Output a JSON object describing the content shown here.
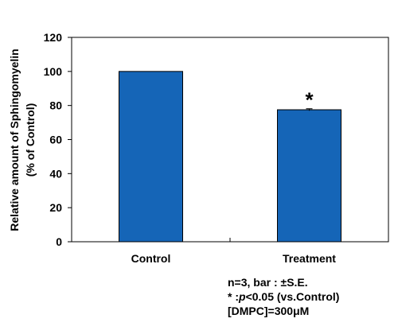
{
  "chart_data": {
    "type": "bar",
    "categories": [
      "Control",
      "Treatment"
    ],
    "values": [
      100,
      77.5
    ],
    "error": [
      0,
      0.6
    ],
    "significance": [
      "",
      "*"
    ],
    "ylabel_lines": [
      "Relative amount of Sphingomyelin",
      "(%  of Control)"
    ],
    "xlabel": "",
    "ylim": [
      0,
      120
    ],
    "yticks": [
      0,
      20,
      40,
      60,
      80,
      100,
      120
    ],
    "grid": false,
    "bar_color": "#1565b7",
    "bar_edge_color": "#000000"
  },
  "notes": {
    "line1": "n=3, bar : ±S.E.",
    "line2_prefix": "* :",
    "line2_p": "p",
    "line2_suffix": "<0.05 (vs.Control)",
    "line3": "[DMPC]=300μM"
  }
}
